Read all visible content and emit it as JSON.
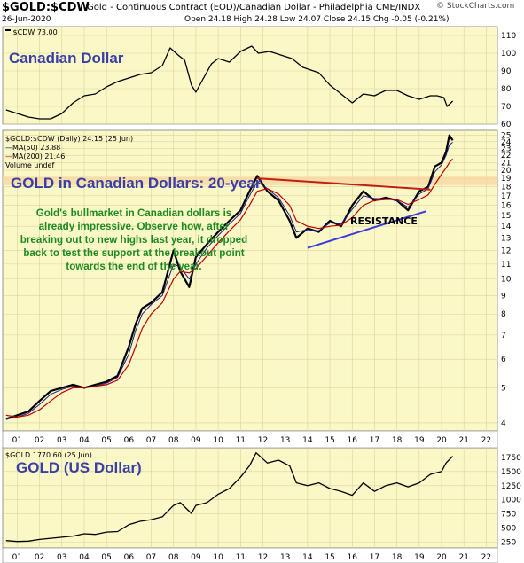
{
  "header": {
    "symbol": "$GOLD:$CDW",
    "description": "Gold - Continuous Contract (EOD)/Canadian Dollar - Philadelphia CME/INDX",
    "site": "© StockCharts.com",
    "date": "26-Jun-2020",
    "ohlc": "Open 24.18 High 24.28 Low 24.07 Close 24.15 Chg -0.05 (-0.21%)"
  },
  "chart_data": [
    {
      "type": "line",
      "legend": "$CDW 73.00",
      "title": "Canadian Dollar",
      "x": [
        2000.5,
        2001,
        2001.5,
        2002,
        2002.5,
        2003,
        2003.5,
        2004,
        2004.5,
        2005,
        2005.5,
        2006,
        2006.5,
        2007,
        2007.5,
        2007.85,
        2008.2,
        2008.5,
        2008.8,
        2009,
        2009.3,
        2009.7,
        2010,
        2010.5,
        2011,
        2011.5,
        2011.8,
        2012.3,
        2012.8,
        2013.3,
        2013.8,
        2014.5,
        2015,
        2015.5,
        2016,
        2016.5,
        2017,
        2017.5,
        2018,
        2018.5,
        2019,
        2019.5,
        2019.8,
        2020.1,
        2020.25,
        2020.5
      ],
      "y": [
        68,
        66,
        64,
        63,
        63,
        66,
        72,
        76,
        77,
        81,
        84,
        86,
        88,
        89,
        93,
        103,
        99,
        96,
        82,
        78,
        85,
        94,
        97,
        95,
        101,
        104,
        100,
        101,
        99,
        97,
        92,
        89,
        82,
        77,
        72,
        77,
        76,
        79,
        79,
        76,
        74,
        76,
        76,
        75,
        70,
        73
      ],
      "ylim": [
        60,
        115
      ],
      "yticks": [
        60,
        70,
        80,
        90,
        100,
        110
      ]
    },
    {
      "type": "line",
      "legend_main": "$GOLD:$CDW (Daily) 24.15 (25 Jun)",
      "legend_ma50": "MA(50) 23.88",
      "legend_ma200": "MA(200) 21.46",
      "legend_vol": "Volume undef",
      "title": "GOLD in Canadian Dollars: 20-year",
      "annotation": "Gold's bullmarket in Canadian dollars is already impressive. Observe how, after breaking out to new highs last year, it dropped back to test the support at the breakout point towards the end of the year.",
      "resistance_label": "RESISTANCE",
      "scale": "log",
      "x": [
        2000.5,
        2001,
        2001.5,
        2002,
        2002.5,
        2003,
        2003.5,
        2004,
        2004.5,
        2005,
        2005.5,
        2006,
        2006.3,
        2006.6,
        2007,
        2007.5,
        2008,
        2008.3,
        2008.7,
        2009,
        2009.5,
        2010,
        2010.5,
        2011,
        2011.4,
        2011.75,
        2012.2,
        2012.7,
        2013.2,
        2013.5,
        2014,
        2014.5,
        2015,
        2015.5,
        2016,
        2016.5,
        2017,
        2017.5,
        2018,
        2018.5,
        2019,
        2019.4,
        2019.7,
        2020,
        2020.2,
        2020.35,
        2020.5
      ],
      "y": [
        4.1,
        4.2,
        4.3,
        4.6,
        4.9,
        5.0,
        5.1,
        5.0,
        5.1,
        5.2,
        5.4,
        6.5,
        7.5,
        8.3,
        8.6,
        9.2,
        12.0,
        10.5,
        9.5,
        11.5,
        12.5,
        13.5,
        14.5,
        15.5,
        17.5,
        19.3,
        17.5,
        16.5,
        14.5,
        13.0,
        13.8,
        13.5,
        14.5,
        14.0,
        16.0,
        17.5,
        16.5,
        16.8,
        16.5,
        15.5,
        17.5,
        18.0,
        20.5,
        21.0,
        22.5,
        25.0,
        24.2
      ],
      "ma50": [
        4.1,
        4.15,
        4.25,
        4.5,
        4.8,
        4.95,
        5.05,
        5.0,
        5.05,
        5.15,
        5.35,
        6.2,
        7.2,
        8.0,
        8.5,
        9.0,
        11.0,
        10.8,
        10.0,
        11.0,
        12.2,
        13.2,
        14.2,
        15.2,
        17.0,
        18.6,
        17.8,
        16.8,
        15.0,
        13.5,
        13.7,
        13.6,
        14.3,
        14.2,
        15.6,
        17.0,
        16.7,
        16.7,
        16.5,
        15.8,
        17.2,
        17.8,
        19.8,
        20.7,
        22.0,
        23.5,
        23.9
      ],
      "ma200": [
        4.2,
        4.15,
        4.2,
        4.35,
        4.6,
        4.85,
        5.0,
        5.0,
        5.05,
        5.1,
        5.25,
        5.8,
        6.5,
        7.3,
        8.0,
        8.6,
        10.0,
        10.5,
        10.4,
        10.7,
        11.6,
        12.6,
        13.6,
        14.6,
        16.0,
        17.5,
        17.8,
        17.2,
        16.0,
        14.5,
        14.0,
        13.8,
        14.0,
        14.1,
        14.8,
        16.0,
        16.5,
        16.6,
        16.6,
        16.1,
        16.6,
        17.1,
        18.3,
        19.5,
        20.3,
        21.0,
        21.5
      ],
      "resistance_line": {
        "x": [
          2011.75,
          2019.5
        ],
        "y": [
          19.0,
          17.7
        ]
      },
      "support_line": {
        "x": [
          2014.0,
          2019.3
        ],
        "y": [
          12.2,
          15.4
        ]
      },
      "resistance_zone": {
        "y": [
          18.2,
          19.2
        ]
      },
      "ylim": [
        3.8,
        25.8
      ],
      "yticks": [
        4,
        5,
        6,
        7,
        8,
        9,
        10,
        11,
        12,
        13,
        14,
        15,
        16,
        17,
        18,
        19,
        20,
        21,
        22,
        23,
        24,
        25
      ]
    },
    {
      "type": "line",
      "legend": "$GOLD 1770.60 (25 Jun)",
      "title": "GOLD (US Dollar)",
      "x": [
        2000.5,
        2001,
        2001.5,
        2002,
        2002.5,
        2003,
        2003.5,
        2004,
        2004.5,
        2005,
        2005.5,
        2006,
        2006.5,
        2007,
        2007.5,
        2008,
        2008.3,
        2008.8,
        2009,
        2009.5,
        2010,
        2010.5,
        2011,
        2011.4,
        2011.7,
        2012.2,
        2012.7,
        2013.2,
        2013.5,
        2014,
        2014.5,
        2015,
        2015.5,
        2016,
        2016.5,
        2017,
        2017.5,
        2018,
        2018.5,
        2019,
        2019.5,
        2020,
        2020.2,
        2020.5
      ],
      "y": [
        280,
        265,
        270,
        300,
        320,
        340,
        360,
        400,
        390,
        430,
        440,
        560,
        620,
        650,
        700,
        900,
        950,
        760,
        900,
        950,
        1100,
        1200,
        1400,
        1600,
        1830,
        1650,
        1700,
        1600,
        1300,
        1250,
        1300,
        1200,
        1150,
        1080,
        1300,
        1150,
        1250,
        1300,
        1230,
        1300,
        1450,
        1500,
        1650,
        1770
      ],
      "ylim": [
        150,
        1920
      ],
      "yticks": [
        250,
        500,
        750,
        1000,
        1250,
        1500,
        1750
      ]
    }
  ],
  "x_axis": {
    "labels": [
      "01",
      "02",
      "03",
      "04",
      "05",
      "06",
      "07",
      "08",
      "09",
      "10",
      "11",
      "12",
      "13",
      "14",
      "15",
      "16",
      "17",
      "18",
      "19",
      "20",
      "21",
      "22"
    ]
  }
}
